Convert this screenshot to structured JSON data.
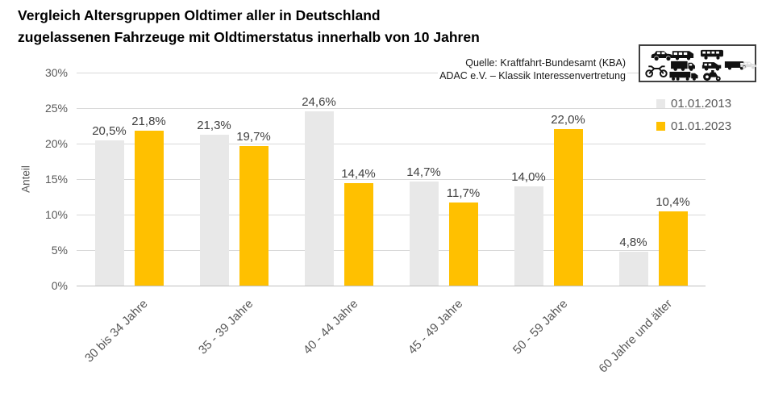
{
  "title": {
    "line1": "Vergleich Altersgruppen Oldtimer aller in Deutschland",
    "line2": "zugelassenen Fahrzeuge mit Oldtimerstatus innerhalb von 10 Jahren"
  },
  "source": {
    "line1": "Quelle: Kraftfahrt-Bundesamt (KBA)",
    "line2": "ADAC e.V. – Klassik Interessenvertretung"
  },
  "legend": [
    {
      "label": "01.01.2013",
      "color": "#e8e8e8"
    },
    {
      "label": "01.01.2023",
      "color": "#ffc000"
    }
  ],
  "y_axis": {
    "title": "Anteil",
    "ticks": [
      "30%",
      "25%",
      "20%",
      "15%",
      "10%",
      "5%",
      "0%"
    ]
  },
  "icons": [
    "car-icon",
    "motorcycle-icon",
    "van-icon",
    "truck-icon",
    "long-truck-icon",
    "bus-icon",
    "jeep-icon",
    "tractor-icon",
    "box-van-icon",
    "ghost-car-icon"
  ],
  "colors": {
    "series_2013": "#e8e8e8",
    "series_2023": "#ffc000",
    "gridline": "#d9d9d9",
    "axis_line": "#bfbfbf",
    "tick_text": "#595959",
    "label_text": "#404040"
  },
  "chart_data": {
    "type": "bar",
    "categories": [
      "30 bis 34 Jahre",
      "35 - 39 Jahre",
      "40 - 44 Jahre",
      "45 - 49 Jahre",
      "50 - 59 Jahre",
      "60 Jahre und älter"
    ],
    "series": [
      {
        "name": "01.01.2013",
        "color": "#e8e8e8",
        "values": [
          20.5,
          21.3,
          24.6,
          14.7,
          14.0,
          4.8
        ],
        "labels": [
          "20,5%",
          "21,3%",
          "24,6%",
          "14,7%",
          "14,0%",
          "4,8%"
        ]
      },
      {
        "name": "01.01.2023",
        "color": "#ffc000",
        "values": [
          21.8,
          19.7,
          14.4,
          11.7,
          22.0,
          10.4
        ],
        "labels": [
          "21,8%",
          "19,7%",
          "14,4%",
          "11,7%",
          "22,0%",
          "10,4%"
        ]
      }
    ],
    "title": "Vergleich Altersgruppen Oldtimer aller in Deutschland zugelassenen Fahrzeuge mit Oldtimerstatus innerhalb von 10 Jahren",
    "xlabel": "",
    "ylabel": "Anteil",
    "ylim": [
      0,
      30
    ],
    "y_tick_step": 5,
    "grid": true,
    "legend_position": "top-right"
  }
}
